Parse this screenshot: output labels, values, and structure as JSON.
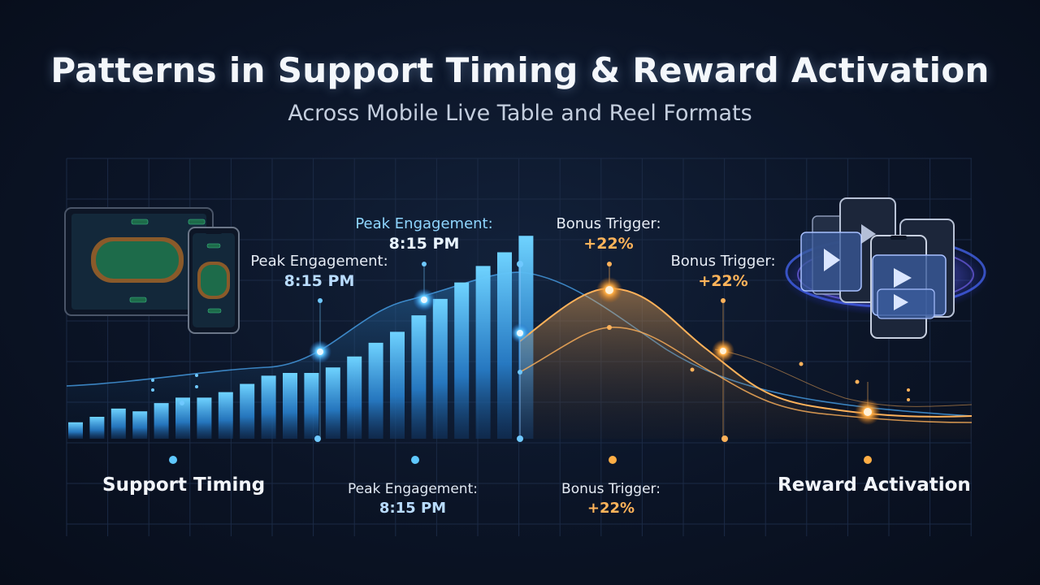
{
  "title": "Patterns in Support Timing & Reward Activation",
  "subtitle": "Across Mobile Live Table and Reel Formats",
  "colors": {
    "background": "#0b1426",
    "support_blue": "#4fc3ff",
    "reward_orange": "#ffa53d",
    "grid": "#1b2a45"
  },
  "icons": {
    "left_device": "tablet-and-phone-live-table-icon",
    "right_device": "stacked-phones-reel-video-icon"
  },
  "annotations": {
    "chart_peak_left": {
      "line1": "Peak Engagement:",
      "line2": "8:15 PM"
    },
    "chart_peak_top": {
      "line1": "Peak Engagement:",
      "line2": "8:15 PM"
    },
    "chart_bonus_top": {
      "line1": "Bonus Trigger:",
      "line2": "+22%"
    },
    "chart_bonus_right": {
      "line1": "Bonus Trigger:",
      "line2": "+22%"
    }
  },
  "axis": {
    "left_label": "Support Timing",
    "right_label": "Reward Activation",
    "mid_left": {
      "line1": "Peak Engagement:",
      "line2": "8:15 PM"
    },
    "mid_right": {
      "line1": "Bonus Trigger:",
      "line2": "+22%"
    }
  },
  "chart_data": {
    "type": "bar",
    "title": "Patterns in Support Timing & Reward Activation",
    "subtitle": "Across Mobile Live Table and Reel Formats",
    "series": [
      {
        "values": [
          6,
          8,
          11,
          10,
          13,
          15,
          15,
          17,
          20,
          23,
          24,
          24,
          26,
          30,
          35,
          39,
          45,
          51,
          57,
          63,
          68,
          74
        ]
      }
    ],
    "ylim": [
      0,
      80
    ],
    "grid": true
  }
}
